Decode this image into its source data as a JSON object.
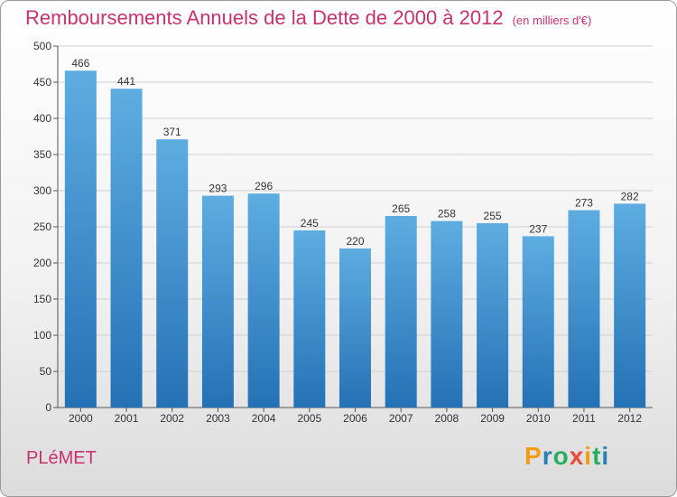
{
  "title": "Remboursements Annuels de la Dette de 2000 à 2012",
  "unit_note": "(en milliers d'€)",
  "city": "PLéMET",
  "logo": {
    "letters": [
      "P",
      "r",
      "o",
      "x",
      "i",
      "t",
      "i"
    ],
    "colors": [
      "#f39c12",
      "#2980b9",
      "#27ae60",
      "#e74c3c",
      "#f39c12",
      "#27ae60",
      "#2980b9"
    ]
  },
  "colors": {
    "bar_light": "#5dade2",
    "bar_dark": "#2471b5",
    "accent": "#c8326e"
  },
  "chart_data": {
    "type": "bar",
    "title": "Remboursements Annuels de la Dette de 2000 à 2012",
    "subtitle": "(en milliers d'€)",
    "categories": [
      "2000",
      "2001",
      "2002",
      "2003",
      "2004",
      "2005",
      "2006",
      "2007",
      "2008",
      "2009",
      "2010",
      "2011",
      "2012"
    ],
    "values": [
      466,
      441,
      371,
      293,
      296,
      245,
      220,
      265,
      258,
      255,
      237,
      273,
      282
    ],
    "ylim": [
      0,
      500
    ],
    "yticks": [
      0,
      50,
      100,
      150,
      200,
      250,
      300,
      350,
      400,
      450,
      500
    ],
    "grid": true,
    "xlabel": "",
    "ylabel": ""
  }
}
